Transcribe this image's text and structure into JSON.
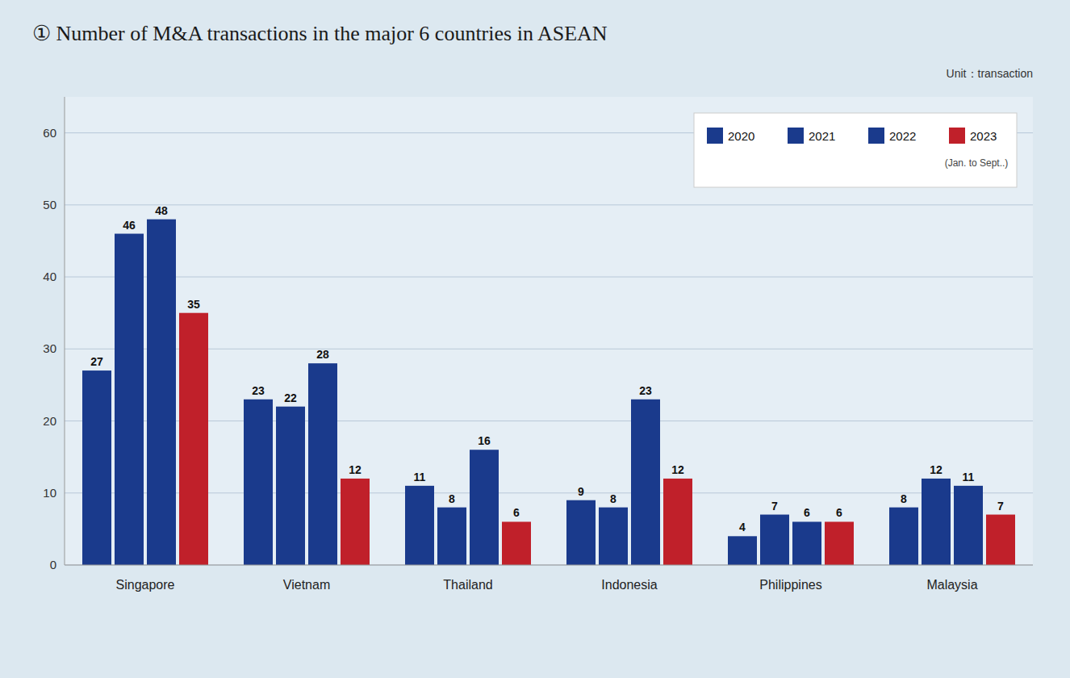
{
  "chart_data": {
    "type": "bar",
    "title": "① Number of M&A transactions in the major 6 countries in ASEAN",
    "y_label": "Unit：transaction",
    "annotations": [
      "(Jan. to Sept..)"
    ],
    "categories": [
      "Singapore",
      "Vietnam",
      "Thailand",
      "Indonesia",
      "Philippines",
      "Malaysia"
    ],
    "series": [
      {
        "name": "2020",
        "color": "#1a3a8c",
        "values": [
          27,
          23,
          11,
          9,
          4,
          8
        ]
      },
      {
        "name": "2021",
        "color": "#1a3a8c",
        "values": [
          46,
          22,
          8,
          8,
          7,
          12
        ]
      },
      {
        "name": "2022",
        "color": "#1a3a8c",
        "values": [
          48,
          28,
          16,
          23,
          6,
          11
        ]
      },
      {
        "name": "2023",
        "color": "#c0202a",
        "values": [
          35,
          12,
          6,
          12,
          6,
          7
        ]
      }
    ],
    "ylim": [
      0,
      65
    ],
    "yticks": [
      0,
      10,
      20,
      30,
      40,
      50,
      60
    ],
    "grid": true,
    "legend": "upper right",
    "data_labels": true
  }
}
